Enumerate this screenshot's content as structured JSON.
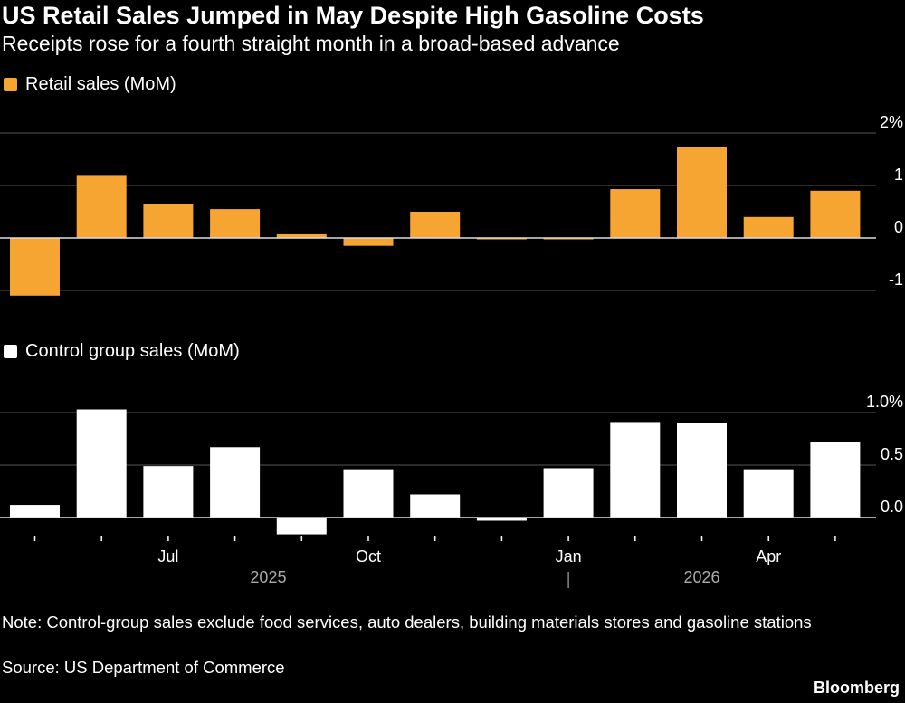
{
  "title": "US Retail Sales Jumped in May Despite High Gasoline Costs",
  "subtitle": "Receipts rose for a fourth straight month in a broad-based advance",
  "note": "Note: Control-group sales exclude food services, auto dealers, building materials stores and gasoline stations",
  "source": "Source: US Department of Commerce",
  "brand": "Bloomberg",
  "colors": {
    "retail": "#f7a532",
    "control": "#ffffff",
    "background": "#000000",
    "grid": "#555555"
  },
  "chart_data": [
    {
      "type": "bar",
      "legend": "Retail sales (MoM)",
      "color": "#f7a532",
      "ylim": [
        -1.2,
        2.1
      ],
      "yticks": [
        2,
        1,
        0,
        -1
      ],
      "ytick_labels": [
        "2%",
        "1",
        "0",
        "-1"
      ],
      "grid": true,
      "values": [
        -1.1,
        1.2,
        0.65,
        0.55,
        0.07,
        -0.15,
        0.5,
        0.0,
        -0.02,
        0.93,
        1.73,
        0.4,
        0.9
      ]
    },
    {
      "type": "bar",
      "legend": "Control group sales (MoM)",
      "color": "#ffffff",
      "ylim": [
        -0.2,
        1.1
      ],
      "yticks": [
        1.0,
        0.5,
        0.0
      ],
      "ytick_labels": [
        "1.0%",
        "0.5",
        "0.0"
      ],
      "grid": true,
      "values": [
        0.12,
        1.03,
        0.49,
        0.67,
        -0.16,
        0.46,
        0.22,
        -0.03,
        0.47,
        0.91,
        0.9,
        0.46,
        0.72
      ]
    }
  ],
  "x_axis": {
    "period_count": 13,
    "month_labels": [
      {
        "index": 2,
        "label": "Jul"
      },
      {
        "index": 5,
        "label": "Oct"
      },
      {
        "index": 8,
        "label": "Jan"
      },
      {
        "index": 11,
        "label": "Apr"
      }
    ],
    "year_labels": [
      {
        "label": "2025",
        "start": 0,
        "end": 7
      },
      {
        "label": "2026",
        "start": 8,
        "end": 12
      }
    ]
  }
}
